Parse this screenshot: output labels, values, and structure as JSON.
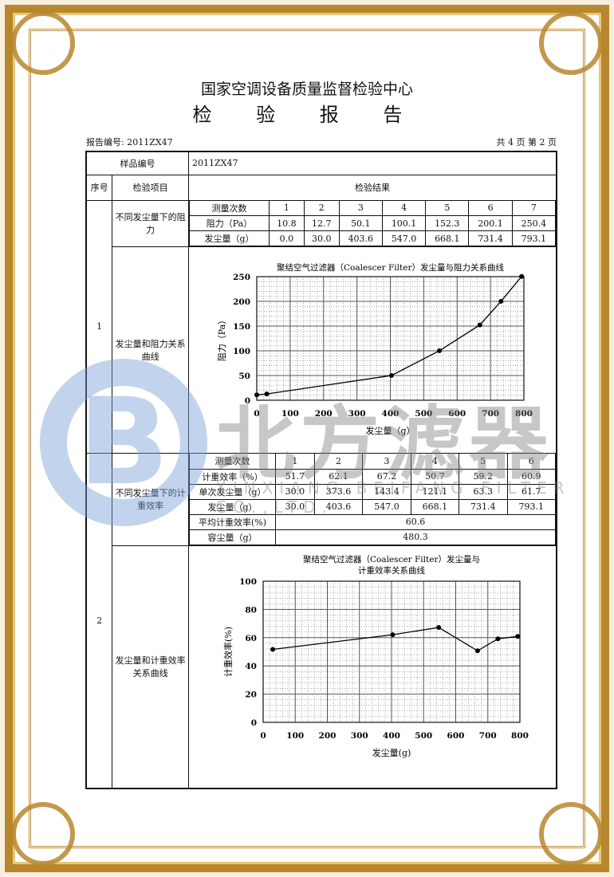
{
  "header": {
    "org": "国家空调设备质量监督检验中心",
    "title": "检 验 报 告",
    "report_no": "报告编号: 2011ZX47",
    "page": "共 4 页 第 2 页"
  },
  "watermark": {
    "logo": "B",
    "cn": "北方滤器",
    "en": "XINXIANG BEIFANG FILTER CO.,LTD."
  },
  "table": {
    "sample_label": "样品编号",
    "sample_value": "2011ZX47",
    "col_no": "序号",
    "col_item": "检验项目",
    "col_result": "检验结果",
    "s1": {
      "no": "1",
      "item_a": "不同发尘量下的阻力",
      "item_b": "发尘量和阻力关系曲线",
      "rows": [
        [
          "测量次数",
          "1",
          "2",
          "3",
          "4",
          "5",
          "6",
          "7"
        ],
        [
          "阻力（Pa）",
          "10.8",
          "12.7",
          "50.1",
          "100.1",
          "152.3",
          "200.1",
          "250.4"
        ],
        [
          "发尘量（g）",
          "0.0",
          "30.0",
          "403.6",
          "547.0",
          "668.1",
          "731.4",
          "793.1"
        ]
      ]
    },
    "s2": {
      "no": "2",
      "item_a": "不同发尘量下的计重效率",
      "item_b": "发尘量和计重效率关系曲线",
      "rows": [
        [
          "测量次数",
          "1",
          "2",
          "3",
          "4",
          "5",
          "6"
        ],
        [
          "计重效率（%）",
          "51.7",
          "62.1",
          "67.2",
          "50.7",
          "59.2",
          "60.9"
        ],
        [
          "单次发尘量（g）",
          "30.0",
          "373.6",
          "143.4",
          "121.1",
          "63.3",
          "61.7"
        ],
        [
          "发尘量（g）",
          "30.0",
          "403.6",
          "547.0",
          "668.1",
          "731.4",
          "793.1"
        ]
      ],
      "avg_label": "平均计重效率(%)",
      "avg_value": "60.6",
      "cap_label": "容尘量（g）",
      "cap_value": "480.3"
    }
  },
  "chart_data": [
    {
      "type": "line",
      "title": "聚结空气过滤器（Coalescer Filter）发尘量与阻力关系曲线",
      "xlabel": "发尘量（g）",
      "ylabel": "阻力（Pa）",
      "xlim": [
        0,
        800
      ],
      "ylim": [
        0,
        250
      ],
      "xticks": [
        "0",
        "100",
        "200",
        "300",
        "400",
        "500",
        "600",
        "700",
        "800"
      ],
      "yticks": [
        "0",
        "50",
        "100",
        "150",
        "200",
        "250"
      ],
      "grid": true,
      "x": [
        0.0,
        30.0,
        403.6,
        547.0,
        668.1,
        731.4,
        793.1
      ],
      "y": [
        10.8,
        12.7,
        50.1,
        100.1,
        152.3,
        200.1,
        250.4
      ]
    },
    {
      "type": "line",
      "title": "聚结空气过滤器（Coalescer Filter）发尘量与",
      "title2": "计重效率关系曲线",
      "xlabel": "发尘量(g)",
      "ylabel": "计重效率(%)",
      "xlim": [
        0,
        800
      ],
      "ylim": [
        0,
        100
      ],
      "xticks": [
        "0",
        "100",
        "200",
        "300",
        "400",
        "500",
        "600",
        "700",
        "800"
      ],
      "yticks": [
        "0",
        "20",
        "40",
        "60",
        "80",
        "100"
      ],
      "grid": true,
      "x": [
        30.0,
        403.6,
        547.0,
        668.1,
        731.4,
        793.1
      ],
      "y": [
        51.7,
        62.1,
        67.2,
        50.7,
        59.2,
        60.9
      ]
    }
  ]
}
